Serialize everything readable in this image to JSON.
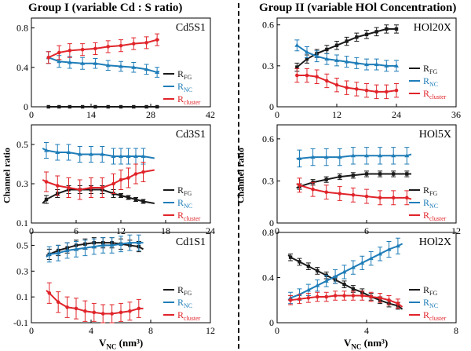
{
  "group_titles": {
    "left": "Group I  (variable Cd : S ratio)",
    "right": "Group II  (variable HOl Concentration)"
  },
  "axis_labels": {
    "left_y": "Channel ratio",
    "right_y": "Channel ratio",
    "x_main": "V",
    "x_sub": "NC",
    "x_unit": " (nm³)"
  },
  "legend_labels": {
    "fg_main": "R",
    "fg_sub": "FG",
    "nc_main": "R",
    "nc_sub": "NC",
    "cl_main": "R",
    "cl_sub": "cluster"
  },
  "colors": {
    "fg": "#1a1a1a",
    "nc": "#1f7db8",
    "cluster": "#e0242a"
  },
  "chart_data": [
    {
      "type": "scatter",
      "title": "Cd5S1",
      "xlim": [
        0,
        42
      ],
      "ylim": [
        0,
        0.9
      ],
      "xticks": [
        0,
        14,
        28,
        42
      ],
      "yticks": [
        0,
        0.4,
        0.8
      ],
      "xticklabels": [
        "0",
        "14",
        "28",
        "42"
      ],
      "yticklabels": [
        "0",
        "0.4",
        "0.8"
      ],
      "series": [
        {
          "key": "fg",
          "x": [
            4,
            6.5,
            9,
            12,
            15,
            18,
            21,
            24,
            27,
            29.5
          ],
          "y": [
            0,
            0,
            0,
            0,
            0,
            0,
            0,
            0,
            0,
            0
          ],
          "err": [
            0,
            0,
            0,
            0,
            0,
            0,
            0,
            0,
            0,
            0
          ],
          "fit_x": [
            4,
            30
          ],
          "fit_y": [
            0,
            0
          ]
        },
        {
          "key": "nc",
          "x": [
            4,
            6.5,
            9,
            12,
            15,
            18,
            21,
            24,
            27,
            29.5
          ],
          "y": [
            0.5,
            0.46,
            0.45,
            0.44,
            0.44,
            0.42,
            0.41,
            0.4,
            0.38,
            0.35
          ],
          "err": [
            0.06,
            0.06,
            0.06,
            0.06,
            0.05,
            0.05,
            0.05,
            0.05,
            0.05,
            0.05
          ],
          "fit_x": [
            4,
            30
          ],
          "fit_y": [
            0.5,
            0.36
          ]
        },
        {
          "key": "cluster",
          "x": [
            4,
            6.5,
            9,
            12,
            15,
            18,
            21,
            24,
            27,
            29.5
          ],
          "y": [
            0.5,
            0.55,
            0.57,
            0.58,
            0.59,
            0.61,
            0.62,
            0.64,
            0.65,
            0.68
          ],
          "err": [
            0.06,
            0.07,
            0.07,
            0.06,
            0.06,
            0.06,
            0.06,
            0.06,
            0.06,
            0.06
          ],
          "fit_x": [
            4,
            30
          ],
          "fit_y": [
            0.5,
            0.68
          ]
        }
      ]
    },
    {
      "type": "scatter",
      "title": "Cd3S1",
      "xlim": [
        0,
        24
      ],
      "ylim": [
        0.1,
        0.6
      ],
      "xticks": [
        0,
        6,
        12,
        18,
        24
      ],
      "yticks": [
        0.1,
        0.3,
        0.5
      ],
      "xticklabels": [
        "0",
        "6",
        "12",
        "18",
        "24"
      ],
      "yticklabels": [
        "0.1",
        "0.3",
        "0.5"
      ],
      "series": [
        {
          "key": "fg",
          "x": [
            2,
            3.5,
            5,
            6.5,
            8,
            9.5,
            11,
            12,
            13,
            14,
            15
          ],
          "y": [
            0.22,
            0.25,
            0.27,
            0.27,
            0.27,
            0.27,
            0.25,
            0.24,
            0.23,
            0.22,
            0.21
          ],
          "err": [
            0.02,
            0.02,
            0.02,
            0.02,
            0.02,
            0.02,
            0.02,
            0.01,
            0.01,
            0.01,
            0.01
          ],
          "fit_x": [
            1.5,
            16.5
          ],
          "fit_y": [
            0.2,
            0.2
          ]
        },
        {
          "key": "nc",
          "x": [
            2,
            3.5,
            5,
            6.5,
            8,
            9.5,
            11,
            12,
            13,
            14,
            15
          ],
          "y": [
            0.47,
            0.46,
            0.46,
            0.45,
            0.45,
            0.45,
            0.44,
            0.44,
            0.44,
            0.44,
            0.44
          ],
          "err": [
            0.04,
            0.04,
            0.04,
            0.04,
            0.04,
            0.04,
            0.04,
            0.04,
            0.04,
            0.04,
            0.04
          ],
          "fit_x": [
            1.5,
            16.5
          ],
          "fit_y": [
            0.48,
            0.43
          ]
        },
        {
          "key": "cluster",
          "x": [
            2,
            3.5,
            5,
            6.5,
            8,
            9.5,
            11,
            12,
            13,
            14,
            15
          ],
          "y": [
            0.31,
            0.29,
            0.28,
            0.27,
            0.28,
            0.28,
            0.3,
            0.32,
            0.33,
            0.35,
            0.36
          ],
          "err": [
            0.05,
            0.05,
            0.05,
            0.05,
            0.05,
            0.05,
            0.05,
            0.05,
            0.05,
            0.05,
            0.05
          ],
          "fit_x": [
            1.5,
            16.5
          ],
          "fit_y": [
            0.32,
            0.37
          ]
        }
      ]
    },
    {
      "type": "scatter",
      "title": "Cd1S1",
      "xlim": [
        0,
        12
      ],
      "ylim": [
        -0.1,
        0.6
      ],
      "xticks": [
        0,
        4,
        8,
        12
      ],
      "yticks": [
        -0.1,
        0.1,
        0.3,
        0.5
      ],
      "xticklabels": [
        "0",
        "4",
        "8",
        "12"
      ],
      "yticklabels": [
        "-0.1",
        "0.1",
        "0.3",
        "0.5"
      ],
      "series": [
        {
          "key": "fg",
          "x": [
            1.2,
            1.8,
            2.4,
            3,
            3.6,
            4.2,
            4.8,
            5.4,
            6,
            6.6,
            7.2
          ],
          "y": [
            0.43,
            0.46,
            0.48,
            0.5,
            0.51,
            0.52,
            0.52,
            0.52,
            0.51,
            0.5,
            0.49
          ],
          "err": [
            0.04,
            0.04,
            0.04,
            0.04,
            0.04,
            0.04,
            0.04,
            0.04,
            0.04,
            0.04,
            0.04
          ],
          "fit_x": [
            1,
            7.5
          ],
          "fit_y": [
            0.42,
            0.47
          ]
        },
        {
          "key": "nc",
          "x": [
            1.2,
            1.8,
            2.4,
            3,
            3.6,
            4.2,
            4.8,
            5.4,
            6,
            6.6,
            7.2
          ],
          "y": [
            0.43,
            0.44,
            0.46,
            0.47,
            0.48,
            0.49,
            0.5,
            0.5,
            0.51,
            0.52,
            0.52
          ],
          "err": [
            0.06,
            0.06,
            0.06,
            0.06,
            0.06,
            0.06,
            0.06,
            0.06,
            0.06,
            0.06,
            0.06
          ],
          "fit_x": [
            1,
            7.5
          ],
          "fit_y": [
            0.41,
            0.52
          ]
        },
        {
          "key": "cluster",
          "x": [
            1.2,
            1.8,
            2.4,
            3,
            3.6,
            4.2,
            4.8,
            5.4,
            6,
            6.6,
            7.2
          ],
          "y": [
            0.13,
            0.06,
            0.02,
            0.01,
            -0.01,
            -0.02,
            -0.03,
            -0.03,
            -0.02,
            -0.01,
            0.01
          ],
          "err": [
            0.08,
            0.08,
            0.08,
            0.08,
            0.08,
            0.07,
            0.07,
            0.07,
            0.07,
            0.07,
            0.07
          ],
          "fit_x": [
            1,
            7.5
          ],
          "fit_y": [
            0.15,
            0.01
          ]
        }
      ]
    },
    {
      "type": "scatter",
      "title": "HOl20X",
      "xlim": [
        0,
        36
      ],
      "ylim": [
        0,
        0.65
      ],
      "xticks": [
        0,
        12,
        24,
        36
      ],
      "yticks": [
        0,
        0.3,
        0.6
      ],
      "xticklabels": [
        "0",
        "12",
        "24",
        "36"
      ],
      "yticklabels": [
        "0",
        "0.3",
        "0.6"
      ],
      "series": [
        {
          "key": "fg",
          "x": [
            4,
            6,
            8,
            10,
            12,
            14,
            16,
            18,
            20,
            22,
            24
          ],
          "y": [
            0.29,
            0.35,
            0.39,
            0.42,
            0.45,
            0.48,
            0.51,
            0.53,
            0.55,
            0.57,
            0.57
          ],
          "err": [
            0.03,
            0.03,
            0.03,
            0.03,
            0.03,
            0.03,
            0.03,
            0.03,
            0.03,
            0.03,
            0.03
          ],
          "fit_x": [
            4,
            24
          ],
          "fit_y": [
            0.28,
            0.57
          ]
        },
        {
          "key": "nc",
          "x": [
            4,
            6,
            8,
            10,
            12,
            14,
            16,
            18,
            20,
            22,
            24
          ],
          "y": [
            0.45,
            0.4,
            0.37,
            0.35,
            0.34,
            0.33,
            0.32,
            0.31,
            0.31,
            0.3,
            0.3
          ],
          "err": [
            0.04,
            0.04,
            0.04,
            0.04,
            0.04,
            0.04,
            0.04,
            0.04,
            0.04,
            0.04,
            0.04
          ],
          "fit_x": [
            4,
            24
          ],
          "fit_y": [
            0.45,
            0.29
          ]
        },
        {
          "key": "cluster",
          "x": [
            4,
            6,
            8,
            10,
            12,
            14,
            16,
            18,
            20,
            22,
            24
          ],
          "y": [
            0.23,
            0.23,
            0.22,
            0.19,
            0.16,
            0.14,
            0.13,
            0.12,
            0.11,
            0.11,
            0.12
          ],
          "err": [
            0.05,
            0.05,
            0.05,
            0.05,
            0.05,
            0.05,
            0.05,
            0.05,
            0.05,
            0.05,
            0.05
          ],
          "fit_x": [
            4,
            24
          ],
          "fit_y": [
            0.24,
            0.12
          ]
        }
      ]
    },
    {
      "type": "scatter",
      "title": "HOl5X",
      "xlim": [
        0,
        12
      ],
      "ylim": [
        0,
        0.7
      ],
      "xticks": [
        0,
        6,
        12
      ],
      "yticks": [
        0,
        0.3,
        0.6
      ],
      "xticklabels": [
        "0",
        "6",
        "12"
      ],
      "yticklabels": [
        "0",
        "0.3",
        "0.6"
      ],
      "series": [
        {
          "key": "fg",
          "x": [
            1.5,
            2.4,
            3.3,
            4.2,
            5.1,
            6,
            6.9,
            7.8,
            8.7
          ],
          "y": [
            0.26,
            0.29,
            0.31,
            0.33,
            0.34,
            0.35,
            0.35,
            0.35,
            0.35
          ],
          "err": [
            0.02,
            0.02,
            0.02,
            0.02,
            0.02,
            0.02,
            0.02,
            0.02,
            0.02
          ],
          "fit_x": [
            1.3,
            9
          ],
          "fit_y": [
            0.25,
            0.35
          ]
        },
        {
          "key": "nc",
          "x": [
            1.5,
            2.4,
            3.3,
            4.2,
            5.1,
            6,
            6.9,
            7.8,
            8.7
          ],
          "y": [
            0.46,
            0.47,
            0.47,
            0.47,
            0.48,
            0.48,
            0.48,
            0.48,
            0.48
          ],
          "err": [
            0.06,
            0.06,
            0.06,
            0.06,
            0.06,
            0.06,
            0.06,
            0.06,
            0.06
          ],
          "fit_x": [
            1.3,
            9
          ],
          "fit_y": [
            0.46,
            0.49
          ]
        },
        {
          "key": "cluster",
          "x": [
            1.5,
            2.4,
            3.3,
            4.2,
            5.1,
            6,
            6.9,
            7.8,
            8.7
          ],
          "y": [
            0.27,
            0.24,
            0.22,
            0.21,
            0.2,
            0.19,
            0.18,
            0.18,
            0.18
          ],
          "err": [
            0.05,
            0.05,
            0.05,
            0.05,
            0.05,
            0.05,
            0.05,
            0.05,
            0.05
          ],
          "fit_x": [
            1.3,
            9
          ],
          "fit_y": [
            0.28,
            0.17
          ]
        }
      ]
    },
    {
      "type": "scatter",
      "title": "HOl2X",
      "xlim": [
        0,
        8
      ],
      "ylim": [
        0,
        0.8
      ],
      "xticks": [
        0,
        4,
        8
      ],
      "yticks": [
        0,
        0.4,
        0.8
      ],
      "xticklabels": [
        "0",
        "4",
        "8"
      ],
      "yticklabels": [
        "0",
        "0.4",
        "0.8"
      ],
      "series": [
        {
          "key": "fg",
          "x": [
            0.6,
            1,
            1.4,
            1.8,
            2.2,
            2.6,
            3,
            3.4,
            3.8,
            4.2,
            4.6,
            5,
            5.4
          ],
          "y": [
            0.58,
            0.54,
            0.5,
            0.46,
            0.42,
            0.38,
            0.34,
            0.3,
            0.27,
            0.23,
            0.2,
            0.17,
            0.15
          ],
          "err": [
            0.03,
            0.03,
            0.03,
            0.03,
            0.03,
            0.03,
            0.03,
            0.03,
            0.03,
            0.03,
            0.03,
            0.03,
            0.03
          ],
          "fit_x": [
            0.5,
            5.6
          ],
          "fit_y": [
            0.6,
            0.12
          ]
        },
        {
          "key": "nc",
          "x": [
            0.6,
            1,
            1.4,
            1.8,
            2.2,
            2.6,
            3,
            3.4,
            3.8,
            4.2,
            4.6,
            5,
            5.4
          ],
          "y": [
            0.22,
            0.25,
            0.29,
            0.33,
            0.37,
            0.41,
            0.45,
            0.49,
            0.53,
            0.57,
            0.61,
            0.65,
            0.68
          ],
          "err": [
            0.05,
            0.05,
            0.05,
            0.05,
            0.05,
            0.06,
            0.06,
            0.06,
            0.06,
            0.06,
            0.06,
            0.07,
            0.07
          ],
          "fit_x": [
            0.5,
            5.6
          ],
          "fit_y": [
            0.2,
            0.7
          ]
        },
        {
          "key": "cluster",
          "x": [
            0.6,
            1,
            1.4,
            1.8,
            2.2,
            2.6,
            3,
            3.4,
            3.8,
            4.2,
            4.6,
            5,
            5.4
          ],
          "y": [
            0.2,
            0.21,
            0.22,
            0.23,
            0.23,
            0.24,
            0.24,
            0.24,
            0.24,
            0.23,
            0.22,
            0.2,
            0.17
          ],
          "err": [
            0.04,
            0.04,
            0.04,
            0.04,
            0.04,
            0.04,
            0.04,
            0.04,
            0.04,
            0.04,
            0.04,
            0.04,
            0.04
          ],
          "fit_x": [
            0.5,
            5.6
          ],
          "fit_y": [
            0.2,
            0.14
          ]
        }
      ]
    }
  ]
}
